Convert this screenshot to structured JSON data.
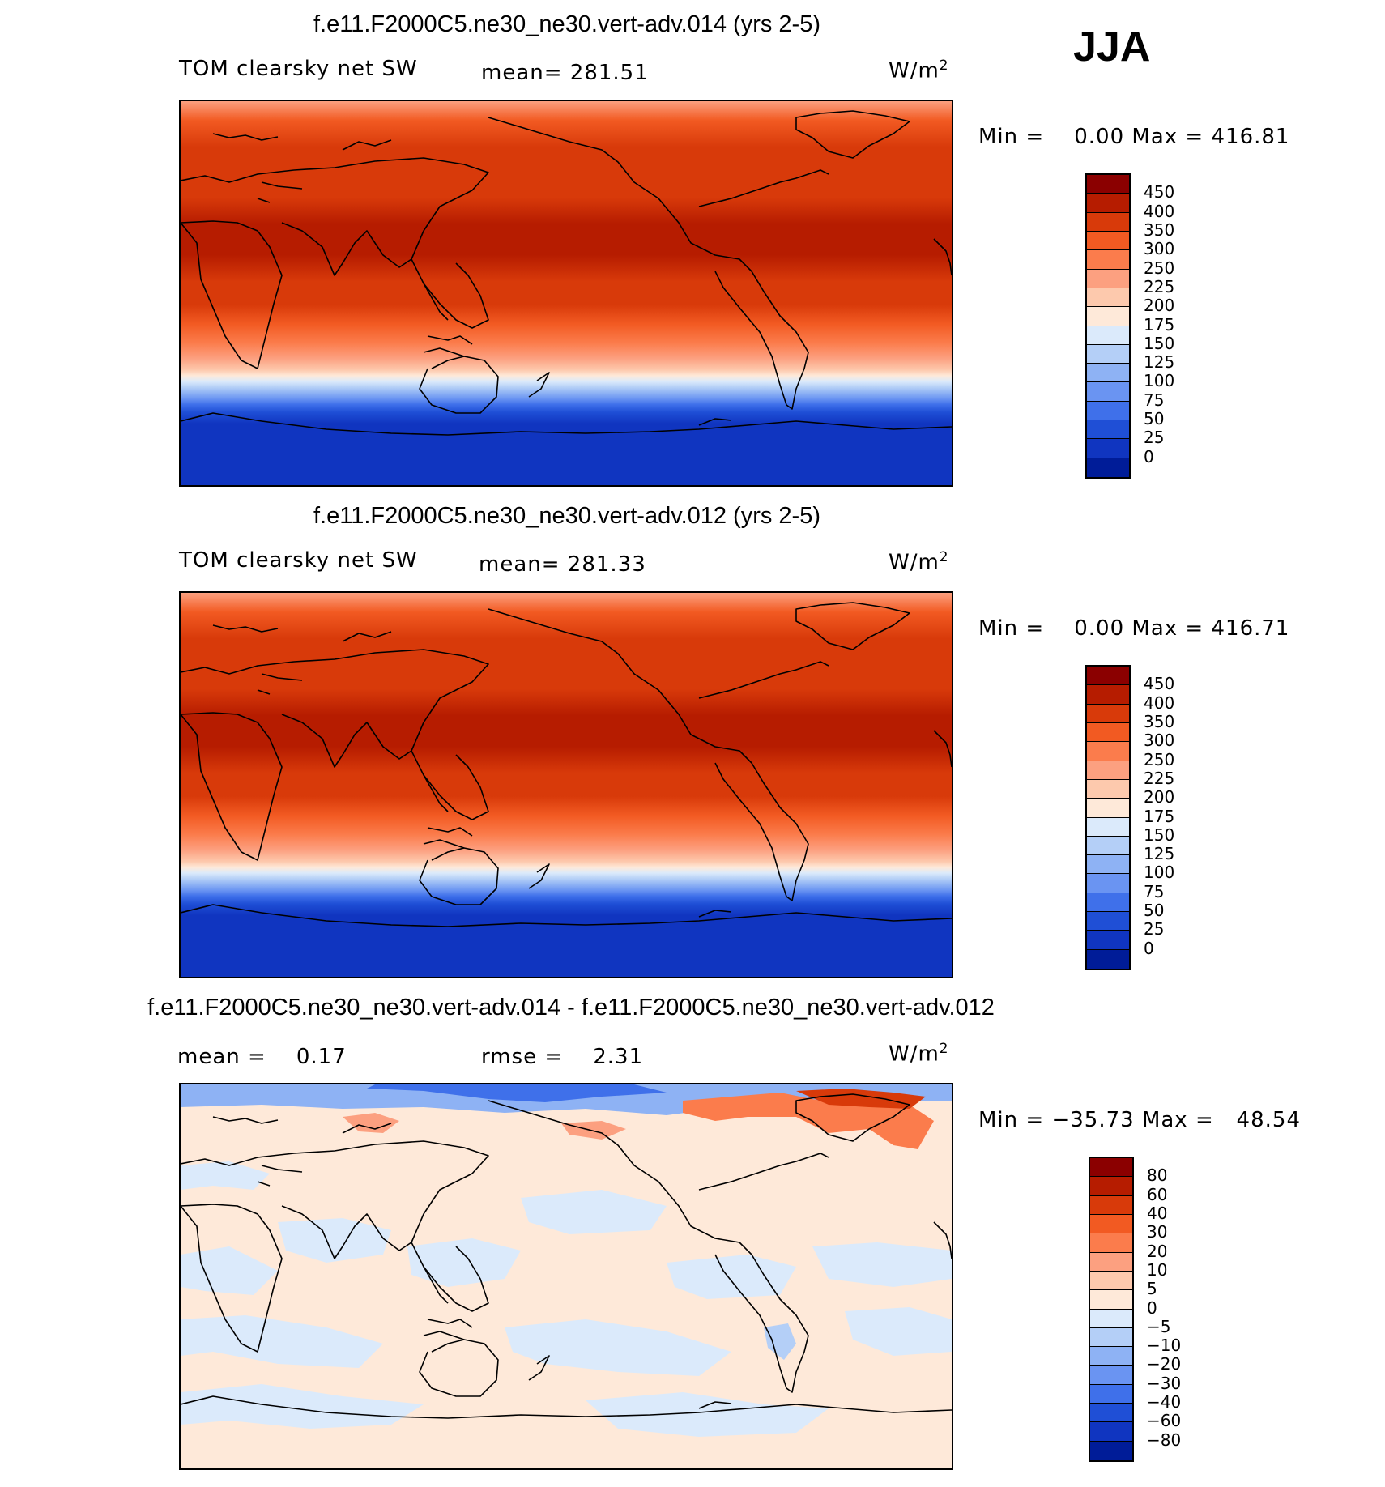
{
  "season": "JJA",
  "panels": [
    {
      "title": "f.e11.F2000C5.ne30_ne30.vert-adv.014 (yrs 2-5)",
      "left_label": "TOM clearsky net SW",
      "mean_label": "mean= 281.51",
      "units_base": "W/m",
      "units_exp": "2",
      "min_label": "Min =",
      "min_value": "0.00",
      "max_label": "Max =",
      "max_value": "416.81",
      "levels": [
        "450",
        "400",
        "350",
        "300",
        "250",
        "225",
        "200",
        "175",
        "150",
        "125",
        "100",
        "75",
        "50",
        "25",
        "0"
      ],
      "colors": [
        "#8b0000",
        "#b61c00",
        "#d83a0a",
        "#f25a22",
        "#fb7c4c",
        "#fca080",
        "#fdc9ad",
        "#fee9d9",
        "#dbeafb",
        "#b4cff7",
        "#8eb2f4",
        "#6a94f2",
        "#3f70ea",
        "#1f4fd6",
        "#1035c0",
        "#001c98"
      ]
    },
    {
      "title": "f.e11.F2000C5.ne30_ne30.vert-adv.012 (yrs 2-5)",
      "left_label": "TOM clearsky net SW",
      "mean_label": "mean= 281.33",
      "units_base": "W/m",
      "units_exp": "2",
      "min_label": "Min =",
      "min_value": "0.00",
      "max_label": "Max =",
      "max_value": "416.71",
      "levels": [
        "450",
        "400",
        "350",
        "300",
        "250",
        "225",
        "200",
        "175",
        "150",
        "125",
        "100",
        "75",
        "50",
        "25",
        "0"
      ],
      "colors": [
        "#8b0000",
        "#b61c00",
        "#d83a0a",
        "#f25a22",
        "#fb7c4c",
        "#fca080",
        "#fdc9ad",
        "#fee9d9",
        "#dbeafb",
        "#b4cff7",
        "#8eb2f4",
        "#6a94f2",
        "#3f70ea",
        "#1f4fd6",
        "#1035c0",
        "#001c98"
      ]
    },
    {
      "title": "f.e11.F2000C5.ne30_ne30.vert-adv.014 - f.e11.F2000C5.ne30_ne30.vert-adv.012",
      "mean_label": "mean =",
      "mean_value": "0.17",
      "rmse_label": "rmse =",
      "rmse_value": "2.31",
      "units_base": "W/m",
      "units_exp": "2",
      "min_label": "Min =",
      "min_value": "−35.73",
      "max_label": "Max =",
      "max_value": "48.54",
      "levels": [
        "80",
        "60",
        "40",
        "30",
        "20",
        "10",
        "5",
        "0",
        "−5",
        "−10",
        "−20",
        "−30",
        "−40",
        "−60",
        "−80"
      ],
      "colors": [
        "#8b0000",
        "#b61c00",
        "#d83a0a",
        "#f25a22",
        "#fb7c4c",
        "#fca080",
        "#fdc9ad",
        "#fee9d9",
        "#dbeafb",
        "#b4cff7",
        "#8eb2f4",
        "#6a94f2",
        "#3f70ea",
        "#1f4fd6",
        "#1035c0",
        "#001c98"
      ]
    }
  ]
}
